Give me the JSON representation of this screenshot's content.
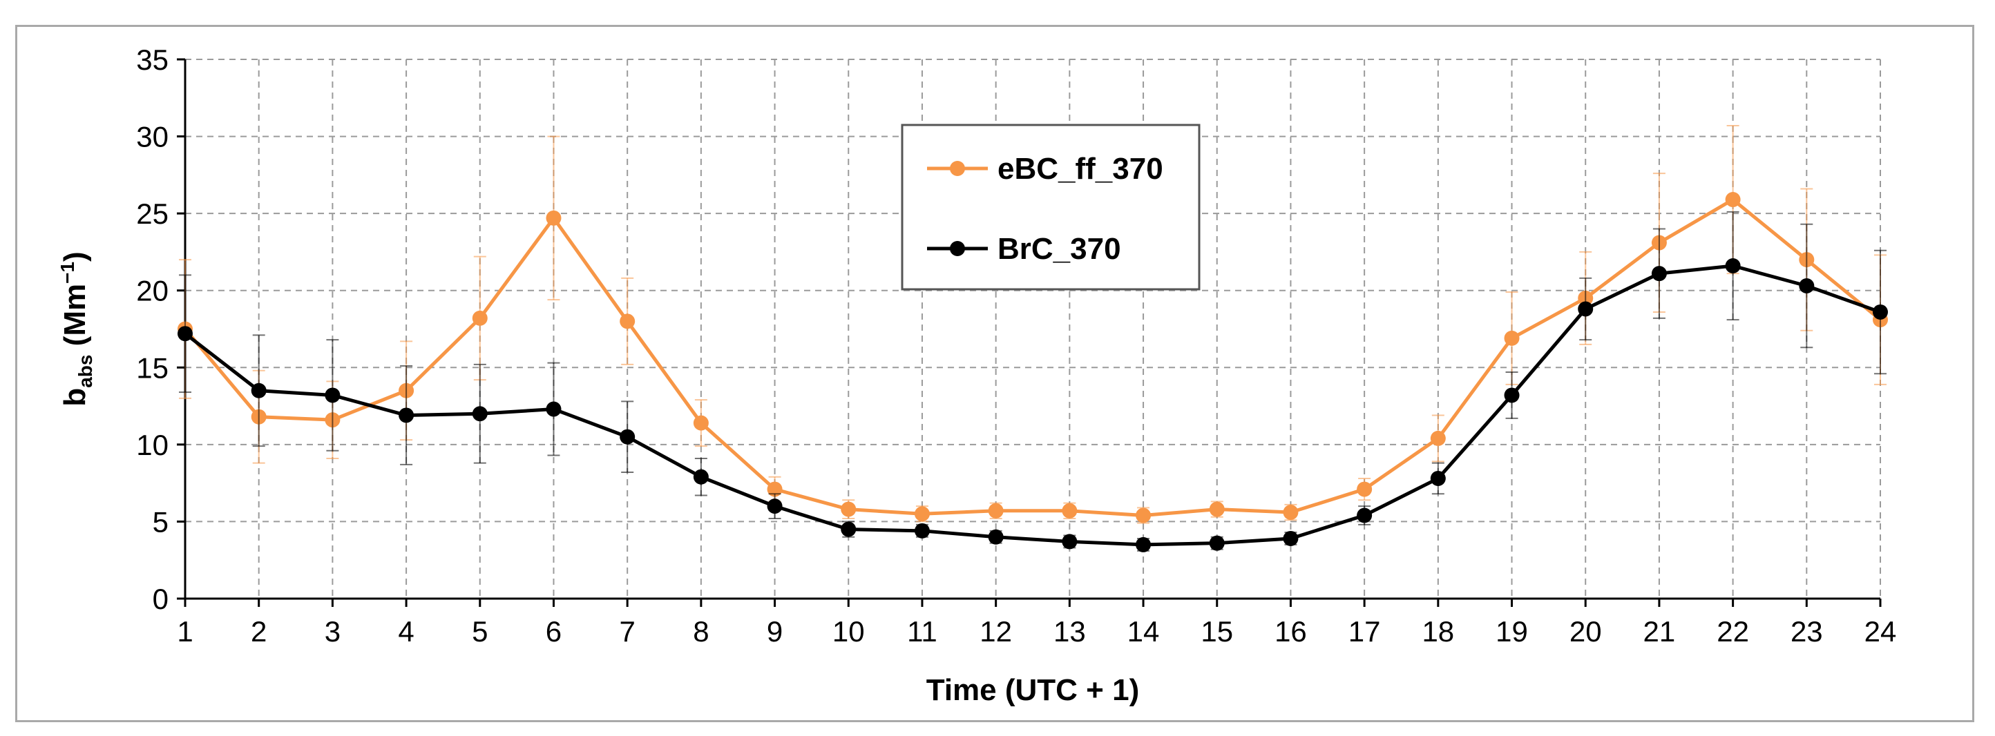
{
  "chart_data": {
    "type": "line",
    "title": "",
    "xlabel": "Time (UTC + 1)",
    "ylabel": {
      "main": "b",
      "subscript": "abs",
      "unit_open": " (Mm",
      "unit_sup": "−1",
      "unit_close": ")"
    },
    "x": [
      1,
      2,
      3,
      4,
      5,
      6,
      7,
      8,
      9,
      10,
      11,
      12,
      13,
      14,
      15,
      16,
      17,
      18,
      19,
      20,
      21,
      22,
      23,
      24
    ],
    "xlim": [
      1,
      24
    ],
    "ylim": [
      0,
      35
    ],
    "yticks": [
      0,
      5,
      10,
      15,
      20,
      25,
      30,
      35
    ],
    "grid": true,
    "legend_position": "top-center",
    "series": [
      {
        "name": "eBC_ff_370",
        "color": "#f79646",
        "values": [
          17.5,
          11.8,
          11.6,
          13.5,
          18.2,
          24.7,
          18.0,
          11.4,
          7.1,
          5.8,
          5.5,
          5.7,
          5.7,
          5.4,
          5.8,
          5.6,
          7.1,
          10.4,
          16.9,
          19.5,
          23.1,
          25.9,
          22.0,
          18.1
        ],
        "error": [
          4.5,
          3.0,
          2.5,
          3.2,
          4.0,
          5.3,
          2.8,
          1.5,
          0.8,
          0.6,
          0.5,
          0.5,
          0.5,
          0.5,
          0.5,
          0.5,
          0.7,
          1.5,
          3.0,
          3.0,
          4.5,
          4.8,
          4.6,
          4.2
        ]
      },
      {
        "name": "BrC_370",
        "color": "#000000",
        "values": [
          17.2,
          13.5,
          13.2,
          11.9,
          12.0,
          12.3,
          10.5,
          7.9,
          6.0,
          4.5,
          4.4,
          4.0,
          3.7,
          3.5,
          3.6,
          3.9,
          5.4,
          7.8,
          13.2,
          18.8,
          21.1,
          21.6,
          20.3,
          18.6
        ],
        "error": [
          3.8,
          3.6,
          3.6,
          3.2,
          3.2,
          3.0,
          2.3,
          1.2,
          0.8,
          0.5,
          0.4,
          0.4,
          0.4,
          0.4,
          0.4,
          0.4,
          0.6,
          1.0,
          1.5,
          2.0,
          2.9,
          3.5,
          4.0,
          4.0
        ]
      }
    ]
  }
}
